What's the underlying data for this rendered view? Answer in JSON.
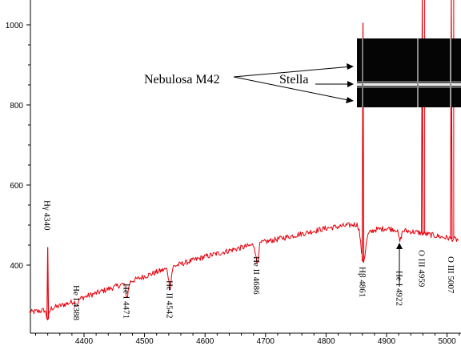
{
  "chart_data": {
    "type": "line",
    "title": "",
    "xlabel": "",
    "ylabel": "",
    "xlim": [
      4310,
      5020
    ],
    "ylim": [
      370,
      1020
    ],
    "x_ticks": [
      {
        "value": 4400,
        "label": "4400"
      },
      {
        "value": 4500,
        "label": "4500"
      },
      {
        "value": 4600,
        "label": "4600"
      },
      {
        "value": 4700,
        "label": "4700"
      },
      {
        "value": 4800,
        "label": "4800"
      },
      {
        "value": 4900,
        "label": "4900"
      },
      {
        "value": 5000,
        "label": "5000"
      }
    ],
    "y_ticks": [
      {
        "value": 400,
        "label": "400"
      },
      {
        "value": 600,
        "label": "600"
      },
      {
        "value": 800,
        "label": "800"
      },
      {
        "value": 1000,
        "label": "1000"
      }
    ],
    "grid": false,
    "series_color": "#e8000b",
    "series": [
      {
        "continuum": {
          "x": [
            4310,
            4330,
            4360,
            4380,
            4400,
            4450,
            4500,
            4550,
            4600,
            4650,
            4700,
            4750,
            4800,
            4855,
            4865,
            4880,
            4900,
            4950,
            5000,
            5020
          ],
          "y": [
            282,
            286,
            298,
            308,
            320,
            345,
            372,
            398,
            421,
            440,
            458,
            475,
            492,
            503,
            475,
            488,
            492,
            482,
            468,
            462
          ]
        },
        "lines": [
          {
            "x": 4340,
            "peak": 445,
            "dip": 265
          },
          {
            "x": 4388,
            "dip": 300
          },
          {
            "x": 4471,
            "dip": 320
          },
          {
            "x": 4542,
            "dip": 345
          },
          {
            "x": 4686,
            "dip": 405
          },
          {
            "x": 4861,
            "peak": 1005,
            "dip": 410
          },
          {
            "x": 4922,
            "dip": 460
          },
          {
            "x": 4959,
            "peak": 1020
          },
          {
            "x": 5007,
            "peak": 1020
          }
        ]
      }
    ],
    "annotations": [
      {
        "text": "Hγ 4340",
        "x": 4340
      },
      {
        "text": "He I 4388",
        "x": 4388
      },
      {
        "text": "He I 4471",
        "x": 4471
      },
      {
        "text": "He II 4542",
        "x": 4542
      },
      {
        "text": "He II 4686",
        "x": 4686
      },
      {
        "text": "Hβ 4861",
        "x": 4861
      },
      {
        "text": "He I 4922",
        "x": 4922
      },
      {
        "text": "O III 4959",
        "x": 4959
      },
      {
        "text": "O III 5007",
        "x": 5007
      }
    ],
    "inset": {
      "labels": [
        "Nebulosa M42",
        "Stella"
      ]
    }
  }
}
